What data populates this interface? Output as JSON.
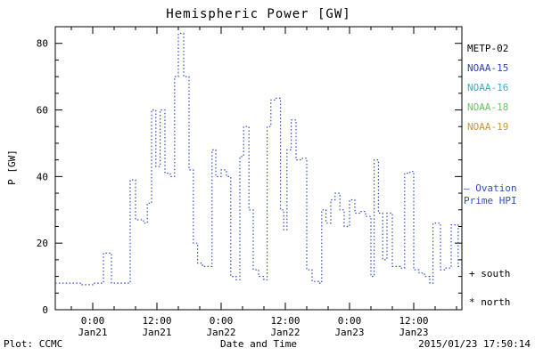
{
  "title": "Hemispheric Power [GW]",
  "axes": {
    "ylabel": "P [GW]",
    "xlabel": "Date and Time",
    "ylim": [
      0,
      85
    ],
    "xlim_hours": [
      -7,
      69
    ],
    "yticks": [
      0,
      20,
      40,
      60,
      80
    ],
    "xticks": [
      {
        "hour": 0,
        "time": "0:00",
        "date": "Jan21"
      },
      {
        "hour": 12,
        "time": "12:00",
        "date": "Jan21"
      },
      {
        "hour": 24,
        "time": "0:00",
        "date": "Jan22"
      },
      {
        "hour": 36,
        "time": "12:00",
        "date": "Jan22"
      },
      {
        "hour": 48,
        "time": "0:00",
        "date": "Jan23"
      },
      {
        "hour": 60,
        "time": "12:00",
        "date": "Jan23"
      }
    ]
  },
  "legend": [
    {
      "label": "METP-02",
      "color": "#000000"
    },
    {
      "label": "NOAA-15",
      "color": "#2e3fbf"
    },
    {
      "label": "NOAA-16",
      "color": "#2fb3c9"
    },
    {
      "label": "NOAA-18",
      "color": "#63c663"
    },
    {
      "label": "NOAA-19",
      "color": "#cf9433"
    }
  ],
  "annotations": {
    "ovation_line1": "— Ovation",
    "ovation_line2": "Prime HPI",
    "ovation_color": "#2e4fc0",
    "south": "+ south",
    "north": "* north"
  },
  "footer": {
    "left": "Plot: CCMC",
    "right": "2015/01/23 17:50:14"
  },
  "chart_data": {
    "type": "line",
    "style": "dotted-step",
    "title": "Hemispheric Power [GW]",
    "xlabel": "Date and Time",
    "ylabel": "P [GW]",
    "ylim": [
      0,
      85
    ],
    "x_units": "hours from 2015-01-21 00:00",
    "series": [
      {
        "name": "Ovation Prime HPI",
        "color": "#2e4fc0",
        "x": [
          -7,
          -2,
          0,
          2,
          3.5,
          7,
          8,
          9.5,
          10.2,
          11,
          11.8,
          12.6,
          13.5,
          14.5,
          15.3,
          16,
          17,
          18,
          18.8,
          19.6,
          20.5,
          22.3,
          23,
          24,
          25,
          25.8,
          26.8,
          27.5,
          28.2,
          29.2,
          30,
          31,
          32,
          32.6,
          33.3,
          34.3,
          35.1,
          35.7,
          36.3,
          37.1,
          38,
          39.2,
          40,
          41,
          42.2,
          42.8,
          43.6,
          44.5,
          45.3,
          46.2,
          47,
          48,
          49,
          50,
          51,
          52,
          52.6,
          53.4,
          54.2,
          55,
          56,
          57.5,
          58.3,
          59.3,
          60,
          61,
          62,
          63,
          63.6,
          65,
          66,
          67,
          68.3
        ],
        "values": [
          8,
          7.5,
          8,
          17,
          8,
          39,
          27,
          26,
          32,
          60,
          43,
          60,
          41,
          40,
          70,
          83,
          70,
          42,
          20,
          14,
          13,
          48,
          40,
          42,
          40,
          10,
          9,
          46,
          55,
          30,
          12,
          10,
          9,
          55,
          63,
          63.5,
          30,
          24,
          48,
          57,
          45,
          45.5,
          12,
          8.5,
          8,
          30,
          26,
          33,
          35,
          30,
          25,
          33,
          29,
          29.5,
          28,
          10,
          45,
          29,
          15,
          29,
          13,
          12.5,
          41,
          41.5,
          12,
          11,
          10,
          8,
          26,
          12,
          12.5,
          25.5,
          13
        ]
      }
    ]
  }
}
